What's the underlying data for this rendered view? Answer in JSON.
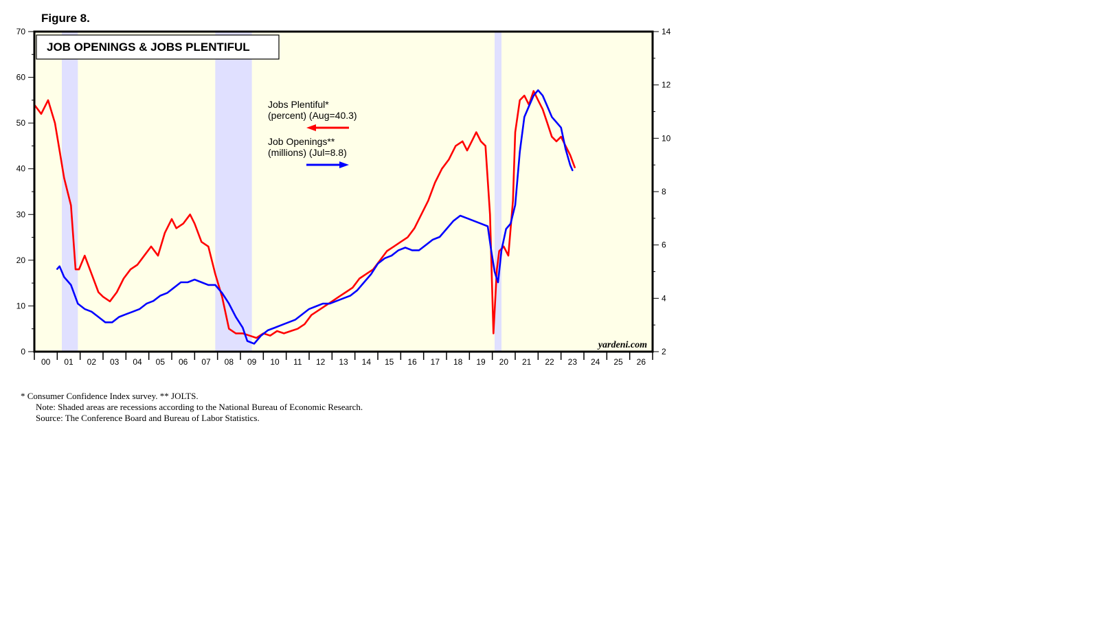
{
  "figure_label": "Figure 8.",
  "chart_data": {
    "type": "line",
    "title": "JOB OPENINGS & JOBS PLENTIFUL",
    "source_mark": "yardeni.com",
    "x_range": [
      2000,
      2027
    ],
    "x_tick_labels": [
      "00",
      "01",
      "02",
      "03",
      "04",
      "05",
      "06",
      "07",
      "08",
      "09",
      "10",
      "11",
      "12",
      "13",
      "14",
      "15",
      "16",
      "17",
      "18",
      "19",
      "20",
      "21",
      "22",
      "23",
      "24",
      "25",
      "26"
    ],
    "y_left": {
      "range": [
        0,
        70
      ],
      "ticks": [
        0,
        10,
        20,
        30,
        40,
        50,
        60,
        70
      ],
      "labels": [
        "0",
        "10",
        "20",
        "30",
        "40",
        "50",
        "60",
        "70"
      ]
    },
    "y_right": {
      "range": [
        2,
        14
      ],
      "ticks": [
        2,
        4,
        6,
        8,
        10,
        12,
        14
      ],
      "labels": [
        "2",
        "4",
        "6",
        "8",
        "10",
        "12",
        "14"
      ]
    },
    "recessions": [
      {
        "start": 2001.2,
        "end": 2001.9
      },
      {
        "start": 2007.9,
        "end": 2009.5
      },
      {
        "start": 2020.1,
        "end": 2020.4
      }
    ],
    "series": [
      {
        "name": "Jobs Plentiful",
        "legend_line1": "Jobs Plentiful*",
        "legend_line2": "(percent) (Aug=40.3)",
        "axis": "left",
        "color": "#ff0000",
        "x": [
          2000.0,
          2000.3,
          2000.6,
          2000.9,
          2001.1,
          2001.3,
          2001.6,
          2001.8,
          2001.95,
          2002.2,
          2002.5,
          2002.8,
          2003.0,
          2003.3,
          2003.6,
          2003.9,
          2004.2,
          2004.5,
          2004.8,
          2005.1,
          2005.4,
          2005.7,
          2006.0,
          2006.2,
          2006.5,
          2006.8,
          2007.0,
          2007.3,
          2007.6,
          2007.9,
          2008.2,
          2008.5,
          2008.8,
          2009.1,
          2009.4,
          2009.7,
          2010.0,
          2010.3,
          2010.6,
          2010.9,
          2011.2,
          2011.5,
          2011.8,
          2012.1,
          2012.4,
          2012.7,
          2013.0,
          2013.3,
          2013.6,
          2013.9,
          2014.2,
          2014.5,
          2014.8,
          2015.1,
          2015.4,
          2015.7,
          2016.0,
          2016.3,
          2016.6,
          2016.9,
          2017.2,
          2017.5,
          2017.8,
          2018.1,
          2018.4,
          2018.7,
          2018.9,
          2019.1,
          2019.3,
          2019.5,
          2019.7,
          2019.9,
          2020.05,
          2020.2,
          2020.3,
          2020.5,
          2020.7,
          2020.9,
          2021.0,
          2021.2,
          2021.4,
          2021.6,
          2021.8,
          2022.0,
          2022.2,
          2022.4,
          2022.6,
          2022.8,
          2023.0,
          2023.2,
          2023.4,
          2023.6
        ],
        "values": [
          54,
          52,
          55,
          50,
          44,
          38,
          32,
          18,
          18,
          21,
          17,
          13,
          12,
          11,
          13,
          16,
          18,
          19,
          21,
          23,
          21,
          26,
          29,
          27,
          28,
          30,
          28,
          24,
          23,
          17,
          12,
          5,
          4,
          4,
          3.5,
          3,
          4,
          3.5,
          4.5,
          4,
          4.5,
          5,
          6,
          8,
          9,
          10,
          11,
          12,
          13,
          14,
          16,
          17,
          18,
          20,
          22,
          23,
          24,
          25,
          27,
          30,
          33,
          37,
          40,
          42,
          45,
          46,
          44,
          46,
          48,
          46,
          45,
          30,
          4,
          18,
          22,
          23,
          21,
          33,
          48,
          55,
          56,
          54,
          57,
          55,
          53,
          50,
          47,
          46,
          47,
          45,
          43,
          40.3
        ]
      },
      {
        "name": "Job Openings",
        "legend_line1": "Job Openings**",
        "legend_line2": "(millions) (Jul=8.8)",
        "axis": "right",
        "color": "#0000ff",
        "x": [
          2001.0,
          2001.1,
          2001.3,
          2001.6,
          2001.9,
          2002.2,
          2002.5,
          2002.8,
          2003.1,
          2003.4,
          2003.7,
          2004.0,
          2004.3,
          2004.6,
          2004.9,
          2005.2,
          2005.5,
          2005.8,
          2006.1,
          2006.4,
          2006.7,
          2007.0,
          2007.3,
          2007.6,
          2007.9,
          2008.2,
          2008.5,
          2008.8,
          2009.1,
          2009.3,
          2009.6,
          2009.9,
          2010.2,
          2010.5,
          2010.8,
          2011.1,
          2011.4,
          2011.7,
          2012.0,
          2012.3,
          2012.6,
          2012.9,
          2013.2,
          2013.5,
          2013.8,
          2014.1,
          2014.4,
          2014.7,
          2015.0,
          2015.3,
          2015.6,
          2015.9,
          2016.2,
          2016.5,
          2016.8,
          2017.1,
          2017.4,
          2017.7,
          2018.0,
          2018.3,
          2018.6,
          2018.9,
          2019.2,
          2019.5,
          2019.8,
          2019.95,
          2020.1,
          2020.25,
          2020.4,
          2020.6,
          2020.8,
          2021.0,
          2021.2,
          2021.4,
          2021.6,
          2021.8,
          2022.0,
          2022.2,
          2022.4,
          2022.6,
          2022.8,
          2023.0,
          2023.2,
          2023.4,
          2023.5
        ],
        "values": [
          5.1,
          5.2,
          4.8,
          4.5,
          3.8,
          3.6,
          3.5,
          3.3,
          3.1,
          3.1,
          3.3,
          3.4,
          3.5,
          3.6,
          3.8,
          3.9,
          4.1,
          4.2,
          4.4,
          4.6,
          4.6,
          4.7,
          4.6,
          4.5,
          4.5,
          4.2,
          3.8,
          3.3,
          2.9,
          2.4,
          2.3,
          2.6,
          2.8,
          2.9,
          3.0,
          3.1,
          3.2,
          3.4,
          3.6,
          3.7,
          3.8,
          3.8,
          3.9,
          4.0,
          4.1,
          4.3,
          4.6,
          4.9,
          5.3,
          5.5,
          5.6,
          5.8,
          5.9,
          5.8,
          5.8,
          6.0,
          6.2,
          6.3,
          6.6,
          6.9,
          7.1,
          7.0,
          6.9,
          6.8,
          6.7,
          5.8,
          5.0,
          4.6,
          5.8,
          6.6,
          6.8,
          7.5,
          9.5,
          10.8,
          11.2,
          11.6,
          11.8,
          11.6,
          11.2,
          10.8,
          10.6,
          10.4,
          9.6,
          9.0,
          8.8
        ]
      }
    ],
    "notes": [
      "*   Consumer Confidence Index survey. ** JOLTS.",
      "Note: Shaded areas are recessions according to the National Bureau of Economic Research.",
      "Source: The Conference Board and Bureau of Labor Statistics."
    ]
  }
}
